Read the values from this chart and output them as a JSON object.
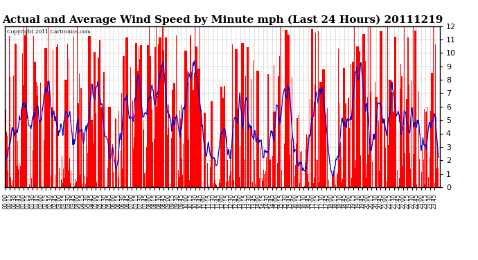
{
  "title": "Actual and Average Wind Speed by Minute mph (Last 24 Hours) 20111219",
  "copyright_text": "Copyright 2011 Cartronics.com",
  "y_min": 0.0,
  "y_max": 12.0,
  "y_ticks": [
    0.0,
    1.0,
    2.0,
    3.0,
    4.0,
    5.0,
    6.0,
    7.0,
    8.0,
    9.0,
    10.0,
    11.0,
    12.0
  ],
  "bar_color": "#ff0000",
  "line_color": "#0000cc",
  "background_color": "#ffffff",
  "plot_bg_color": "#ffffff",
  "grid_color": "#b0b0b0",
  "title_fontsize": 11,
  "n_minutes": 1440,
  "x_label_interval": 15,
  "seed": 99
}
